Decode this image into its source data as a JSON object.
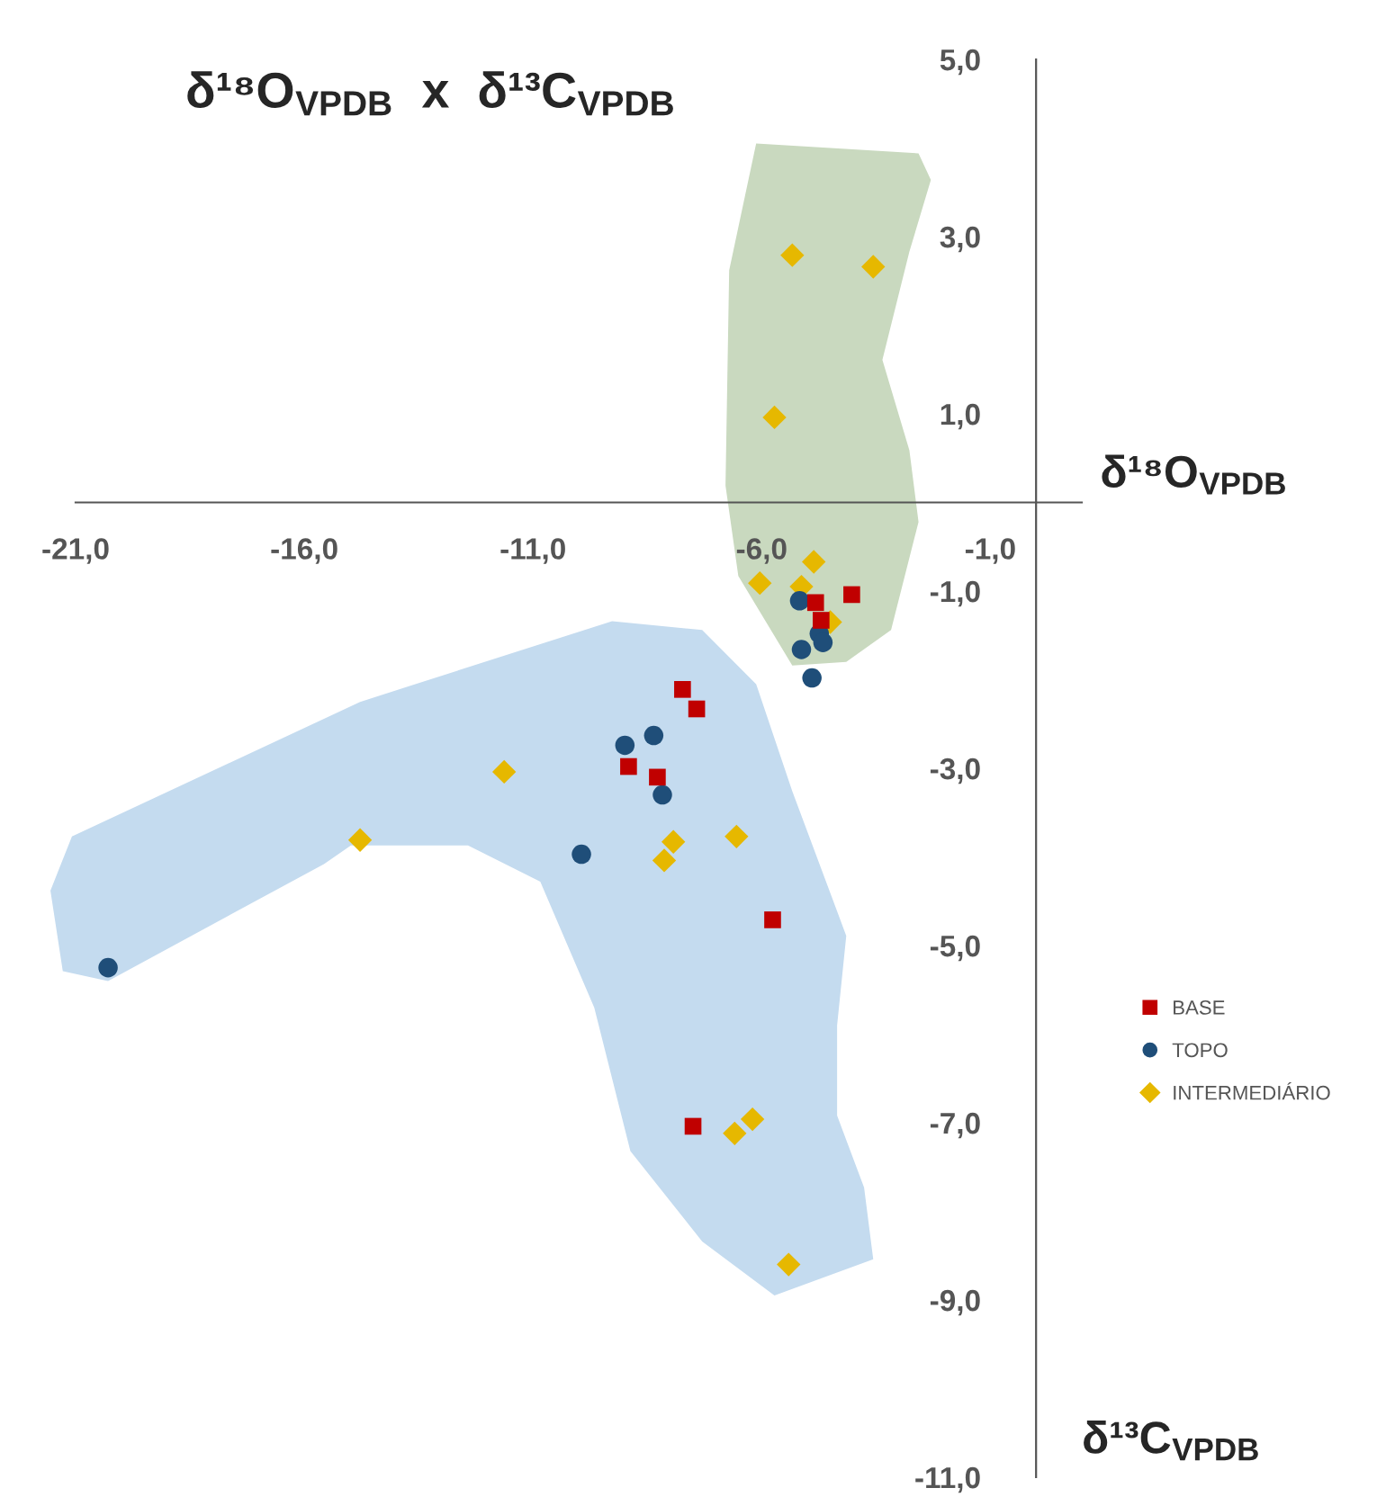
{
  "chart_data": {
    "type": "scatter",
    "title": "δ¹⁸O$_{VPDB}$  x  δ¹³C$_{VPDB}$",
    "xlabel": "δ¹⁸O$_{VPDB}$",
    "ylabel": "δ¹³C$_{VPDB}$",
    "xlim": [
      -21,
      1
    ],
    "ylim": [
      -11,
      5
    ],
    "xticks": [
      {
        "value": -21,
        "label": "-21,0"
      },
      {
        "value": -16,
        "label": "-16,0"
      },
      {
        "value": -11,
        "label": "-11,0"
      },
      {
        "value": -6,
        "label": "-6,0"
      },
      {
        "value": -1,
        "label": "-1,0"
      }
    ],
    "yticks": [
      {
        "value": 5,
        "label": "5,0"
      },
      {
        "value": 3,
        "label": "3,0"
      },
      {
        "value": 1,
        "label": "1,0"
      },
      {
        "value": -1,
        "label": "-1,0"
      },
      {
        "value": -3,
        "label": "-3,0"
      },
      {
        "value": -5,
        "label": "-5,0"
      },
      {
        "value": -7,
        "label": "-7,0"
      },
      {
        "value": -9,
        "label": "-9,0"
      },
      {
        "value": -11,
        "label": "-11,0"
      }
    ],
    "grid": false,
    "legend": "right",
    "series": [
      {
        "name": "BASE",
        "color": "#c00000",
        "marker": "square",
        "x": [
          -4.03,
          -4.82,
          -4.7,
          -7.73,
          -7.42,
          -8.91,
          -8.28,
          -5.76,
          -7.5
        ],
        "values": [
          -1.04,
          -1.13,
          -1.33,
          -2.11,
          -2.33,
          -2.98,
          -3.1,
          -4.71,
          -7.04
        ]
      },
      {
        "name": "TOPO",
        "color": "#1f4e79",
        "marker": "circle",
        "x": [
          -5.17,
          -4.74,
          -4.66,
          -5.13,
          -4.9,
          -8.99,
          -8.36,
          -8.17,
          -9.94,
          -20.29
        ],
        "values": [
          -1.11,
          -1.48,
          -1.58,
          -1.66,
          -1.98,
          -2.74,
          -2.63,
          -3.3,
          -3.97,
          -5.25
        ]
      },
      {
        "name": "INTERMEDIÁRIO",
        "color": "#e6b800",
        "marker": "diamond",
        "x": [
          -5.33,
          -3.56,
          -5.72,
          -4.86,
          -6.04,
          -5.13,
          -4.5,
          -11.63,
          -7.93,
          -8.13,
          -6.55,
          -6.2,
          -6.59,
          -5.41,
          -14.78
        ],
        "values": [
          2.79,
          2.66,
          0.96,
          -0.67,
          -0.91,
          -0.95,
          -1.35,
          -3.04,
          -3.83,
          -4.04,
          -3.77,
          -6.96,
          -7.12,
          -8.6,
          -3.81
        ]
      }
    ]
  }
}
